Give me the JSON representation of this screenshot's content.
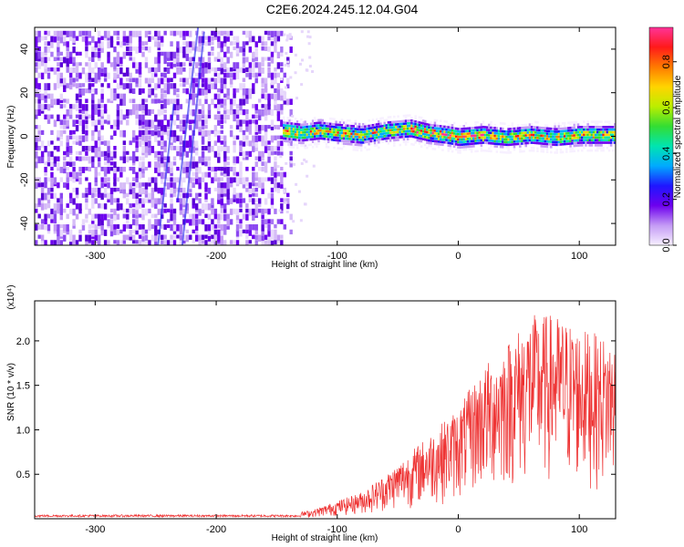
{
  "title": "C2E6.2024.245.12.04.G04",
  "chart_data": [
    {
      "type": "heatmap",
      "name": "spectrogram",
      "xlabel": "Height of straight line (km)",
      "ylabel": "Frequency (Hz)",
      "xlim": [
        -350,
        130
      ],
      "ylim": [
        -50,
        50
      ],
      "xticks": [
        -300,
        -200,
        -100,
        0,
        100
      ],
      "yticks": [
        -40,
        -20,
        0,
        20,
        40
      ],
      "signal_track": [
        {
          "x": -145,
          "y": 3
        },
        {
          "x": -130,
          "y": 2
        },
        {
          "x": -115,
          "y": 3
        },
        {
          "x": -100,
          "y": 2
        },
        {
          "x": -80,
          "y": 1
        },
        {
          "x": -60,
          "y": 3
        },
        {
          "x": -40,
          "y": 4
        },
        {
          "x": -25,
          "y": 2
        },
        {
          "x": -10,
          "y": 1
        },
        {
          "x": 0,
          "y": 0
        },
        {
          "x": 20,
          "y": 1
        },
        {
          "x": 40,
          "y": 0
        },
        {
          "x": 60,
          "y": 1
        },
        {
          "x": 80,
          "y": 0
        },
        {
          "x": 100,
          "y": 1
        },
        {
          "x": 125,
          "y": 1
        }
      ],
      "colorbar": {
        "label": "Normalized spectral amplitude",
        "range": [
          0.0,
          0.95
        ],
        "ticks": [
          "0.0",
          "0.2",
          "0.4",
          "0.6",
          "0.8"
        ],
        "colors": [
          "#f7f0ff",
          "#c49bf5",
          "#6d00ee",
          "#1f16ff",
          "#00aaff",
          "#00e5b0",
          "#33dd33",
          "#bbee00",
          "#ffd400",
          "#ff7a00",
          "#ff1a1a",
          "#ff3399"
        ]
      }
    },
    {
      "type": "line",
      "name": "snr",
      "xlabel": "Height of straight line (km)",
      "ylabel": "SNR (10 * v/v)",
      "multiplier": "(x10⁴)",
      "xlim": [
        -350,
        130
      ],
      "ylim": [
        0,
        2.45
      ],
      "xticks": [
        -300,
        -200,
        -100,
        0,
        100
      ],
      "yticks": [
        "0.5",
        "1.0",
        "1.5",
        "2.0"
      ],
      "color": "#ee3333",
      "envelope": [
        {
          "x": -350,
          "y": 0.03
        },
        {
          "x": -200,
          "y": 0.04
        },
        {
          "x": -150,
          "y": 0.03
        },
        {
          "x": -120,
          "y": 0.1
        },
        {
          "x": -100,
          "y": 0.2
        },
        {
          "x": -80,
          "y": 0.3
        },
        {
          "x": -60,
          "y": 0.5
        },
        {
          "x": -40,
          "y": 0.75
        },
        {
          "x": -20,
          "y": 1.0
        },
        {
          "x": 0,
          "y": 1.25
        },
        {
          "x": 20,
          "y": 1.7
        },
        {
          "x": 40,
          "y": 2.0
        },
        {
          "x": 60,
          "y": 2.3
        },
        {
          "x": 80,
          "y": 2.3
        },
        {
          "x": 100,
          "y": 2.15
        },
        {
          "x": 130,
          "y": 2.0
        }
      ]
    }
  ]
}
